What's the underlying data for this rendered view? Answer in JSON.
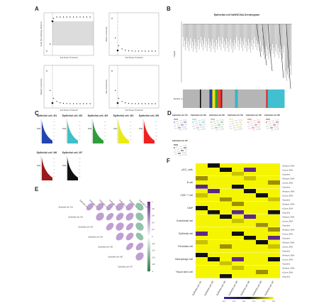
{
  "panels": {
    "A": {
      "letter": "A",
      "subplots": [
        {
          "ylabel": "Scale Free Topology Model Fit",
          "xlabel": "Soft Power Threshold"
        },
        {
          "ylabel": "Mean Connectivity",
          "xlabel": "Soft Power Threshold"
        },
        {
          "ylabel": "Median Connectivity",
          "xlabel": "Soft Power Threshold"
        },
        {
          "ylabel": "Max Connectivity",
          "xlabel": "Soft Power Threshold"
        }
      ]
    },
    "B": {
      "letter": "B",
      "title": "Epithelial cell hdWGCNA Dendrogram",
      "ylabel": "Height",
      "colorbar_label": "Module colors",
      "module_colors": [
        "#b5b5b5",
        "#000000",
        "#b5b5b5",
        "#1f3fa8",
        "#f2e600",
        "#2e9e3a",
        "#ff3b30",
        "#8b1a1a",
        "#b5b5b5",
        "#34b7c9",
        "#b5b5b5",
        "#e02020",
        "#40c0d0"
      ]
    },
    "C": {
      "letter": "C",
      "row1_titles": [
        "Epithelial cell- M1",
        "Epithelial cell- M2",
        "Epithelial cell- M3",
        "Epithelial cell- M4",
        "Epithelial cell- M5"
      ],
      "row2_titles": [
        "Epithelial cell- M6",
        "Epithelial cell- M7"
      ],
      "ylabel": "kME",
      "colors": [
        "#2444b0",
        "#3fc0c8",
        "#2e9e3a",
        "#eaea10",
        "#ee2222",
        "#9b1a1a",
        "#111111"
      ]
    },
    "D": {
      "letter": "D",
      "titles": [
        "Epithelial cell- M1",
        "Epithelial cell- M2",
        "Epithelial cell- M3",
        "Epithelial cell- M4",
        "Epithelial cell- M5",
        "Epithelial cell- M6",
        "Epithelial cell- M7"
      ]
    },
    "E": {
      "letter": "E",
      "labels": [
        "Epithelial cell- M1",
        "Epithelial cell- M2",
        "Epithelial cell- M3",
        "Epithelial cell- M4",
        "Epithelial cell- M5",
        "Epithelial cell- M6",
        "Epithelial cell- M7"
      ],
      "scale_ticks": [
        "1",
        "0.8",
        "0.6",
        "0.4",
        "0.2",
        "0",
        "-0.2",
        "-0.4",
        "-0.6",
        "-0.8",
        "-1"
      ]
    },
    "F": {
      "letter": "F",
      "rows": [
        "pDC_cells",
        "B cell",
        "CD8+ T cell",
        "GMP",
        "Endothelial cell",
        "Epithelial cell",
        "Fibroblast cell",
        "Macrophage cell",
        "Tissue stem cell"
      ],
      "cols": [
        "Epithelial cell- M1",
        "Epithelial cell- M2",
        "Epithelial cell- M3",
        "Epithelial cell- M4",
        "Epithelial cell- M5",
        "Epithelial cell- M6",
        "Epithelial cell- M7"
      ],
      "legend_items": [
        "nFeature_RNA",
        "nCount_RNA",
        "Orig.ident"
      ],
      "scale_ticks": [
        "-0.1",
        "-0.1",
        "0.0",
        "0.1",
        "0.2",
        "0.3"
      ]
    }
  }
}
